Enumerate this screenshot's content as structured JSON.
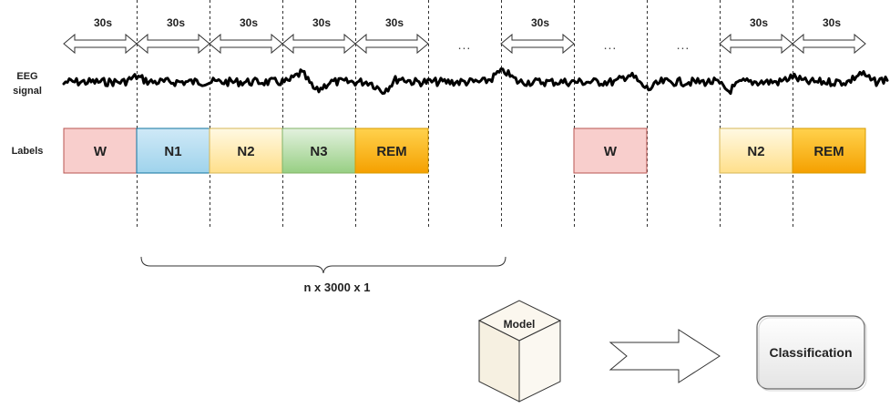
{
  "row_labels": {
    "eeg_line1": "EEG",
    "eeg_line2": "signal",
    "labels": "Labels"
  },
  "epochs": [
    {
      "duration": "30s",
      "label": "W",
      "color": "#f8cecc"
    },
    {
      "duration": "30s",
      "label": "N1",
      "color": "#b1ddf0"
    },
    {
      "duration": "30s",
      "label": "N2",
      "color": "#fff2cc"
    },
    {
      "duration": "30s",
      "label": "N3",
      "color": "#d5e8d4"
    },
    {
      "duration": "30s",
      "label": "REM",
      "color": "#ffcd28"
    },
    {
      "duration": "",
      "label": "",
      "color": ""
    },
    {
      "duration": "30s",
      "label": "",
      "color": ""
    },
    {
      "duration": "",
      "label": "W",
      "color": "#f8cecc"
    },
    {
      "duration": "",
      "label": "",
      "color": ""
    },
    {
      "duration": "30s",
      "label": "N2",
      "color": "#fff2cc"
    },
    {
      "duration": "30s",
      "label": "REM",
      "color": "#ffcd28"
    }
  ],
  "ellipsis": "...",
  "input_shape": "n x 3000 x 1",
  "model_label": "Model",
  "output_label": "Classification",
  "colors": {
    "signal": "#000000",
    "guide_line": "#333333",
    "arrow_outline": "#333333"
  }
}
